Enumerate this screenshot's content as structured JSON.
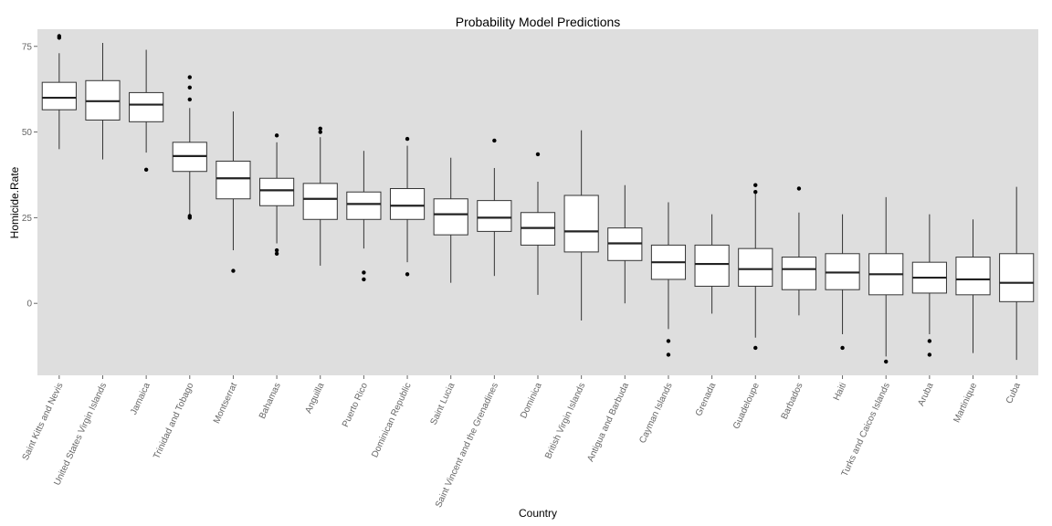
{
  "chart_data": {
    "type": "boxplot",
    "title": "Probability Model Predictions",
    "xlabel": "Country",
    "ylabel": "Homicide.Rate",
    "ylim": [
      -21,
      80
    ],
    "yticks": [
      0,
      25,
      50,
      75
    ],
    "grid": false,
    "legend": "none",
    "colors": {
      "panel": "#DEDEDE",
      "box_fill": "#FFFFFF",
      "stroke": "#333333",
      "tick_text": "#666666"
    },
    "categories": [
      "Saint Kitts and Nevis",
      "United States Virgin Islands",
      "Jamaica",
      "Trinidad and Tobago",
      "Montserrat",
      "Bahamas",
      "Anguilla",
      "Puerto Rico",
      "Dominican Republic",
      "Saint Lucia",
      "Saint Vincent and the Grenadines",
      "Dominica",
      "British Virgin Islands",
      "Antigua and Barbuda",
      "Cayman Islands",
      "Grenada",
      "Guadeloupe",
      "Barbados",
      "Haiti",
      "Turks and Caicos Islands",
      "Aruba",
      "Martinique",
      "Cuba"
    ],
    "boxes": [
      {
        "q1": 56.5,
        "median": 60,
        "q3": 64.5,
        "whisker_low": 45,
        "whisker_high": 73,
        "outliers": [
          77.5,
          78
        ]
      },
      {
        "q1": 53.5,
        "median": 59,
        "q3": 65,
        "whisker_low": 42,
        "whisker_high": 76,
        "outliers": []
      },
      {
        "q1": 53,
        "median": 58,
        "q3": 61.5,
        "whisker_low": 44,
        "whisker_high": 74,
        "outliers": [
          39
        ]
      },
      {
        "q1": 38.5,
        "median": 43,
        "q3": 47,
        "whisker_low": 26,
        "whisker_high": 57,
        "outliers": [
          25,
          25.5,
          59.5,
          63,
          66
        ]
      },
      {
        "q1": 30.5,
        "median": 36.5,
        "q3": 41.5,
        "whisker_low": 15.5,
        "whisker_high": 56,
        "outliers": [
          9.5
        ]
      },
      {
        "q1": 28.5,
        "median": 33,
        "q3": 36.5,
        "whisker_low": 17.5,
        "whisker_high": 47,
        "outliers": [
          14.5,
          15.5,
          49
        ]
      },
      {
        "q1": 24.5,
        "median": 30.5,
        "q3": 35,
        "whisker_low": 11,
        "whisker_high": 48.5,
        "outliers": [
          50,
          51
        ]
      },
      {
        "q1": 24.5,
        "median": 29,
        "q3": 32.5,
        "whisker_low": 16,
        "whisker_high": 44.5,
        "outliers": [
          7,
          9
        ]
      },
      {
        "q1": 24.5,
        "median": 28.5,
        "q3": 33.5,
        "whisker_low": 12,
        "whisker_high": 46,
        "outliers": [
          8.5,
          48
        ]
      },
      {
        "q1": 20,
        "median": 26,
        "q3": 30.5,
        "whisker_low": 6,
        "whisker_high": 42.5,
        "outliers": []
      },
      {
        "q1": 21,
        "median": 25,
        "q3": 30,
        "whisker_low": 8,
        "whisker_high": 39.5,
        "outliers": [
          47.5
        ]
      },
      {
        "q1": 17,
        "median": 22,
        "q3": 26.5,
        "whisker_low": 2.5,
        "whisker_high": 35.5,
        "outliers": [
          43.5
        ]
      },
      {
        "q1": 15,
        "median": 21,
        "q3": 31.5,
        "whisker_low": -5,
        "whisker_high": 50.5,
        "outliers": []
      },
      {
        "q1": 12.5,
        "median": 17.5,
        "q3": 22,
        "whisker_low": 0,
        "whisker_high": 34.5,
        "outliers": []
      },
      {
        "q1": 7,
        "median": 12,
        "q3": 17,
        "whisker_low": -7.5,
        "whisker_high": 29.5,
        "outliers": [
          -11,
          -15
        ]
      },
      {
        "q1": 5,
        "median": 11.5,
        "q3": 17,
        "whisker_low": -3,
        "whisker_high": 26,
        "outliers": []
      },
      {
        "q1": 5,
        "median": 10,
        "q3": 16,
        "whisker_low": -10,
        "whisker_high": 32,
        "outliers": [
          -13,
          32.5,
          34.5
        ]
      },
      {
        "q1": 4,
        "median": 10,
        "q3": 13.5,
        "whisker_low": -3.5,
        "whisker_high": 26.5,
        "outliers": [
          33.5
        ]
      },
      {
        "q1": 4,
        "median": 9,
        "q3": 14.5,
        "whisker_low": -9,
        "whisker_high": 26,
        "outliers": [
          -13
        ]
      },
      {
        "q1": 2.5,
        "median": 8.5,
        "q3": 14.5,
        "whisker_low": -15.5,
        "whisker_high": 31,
        "outliers": [
          -17
        ]
      },
      {
        "q1": 3,
        "median": 7.5,
        "q3": 12,
        "whisker_low": -9,
        "whisker_high": 26,
        "outliers": [
          -11,
          -15
        ]
      },
      {
        "q1": 2.5,
        "median": 7,
        "q3": 13.5,
        "whisker_low": -14.5,
        "whisker_high": 24.5,
        "outliers": []
      },
      {
        "q1": 0.5,
        "median": 6,
        "q3": 14.5,
        "whisker_low": -16.5,
        "whisker_high": 34,
        "outliers": []
      }
    ]
  }
}
